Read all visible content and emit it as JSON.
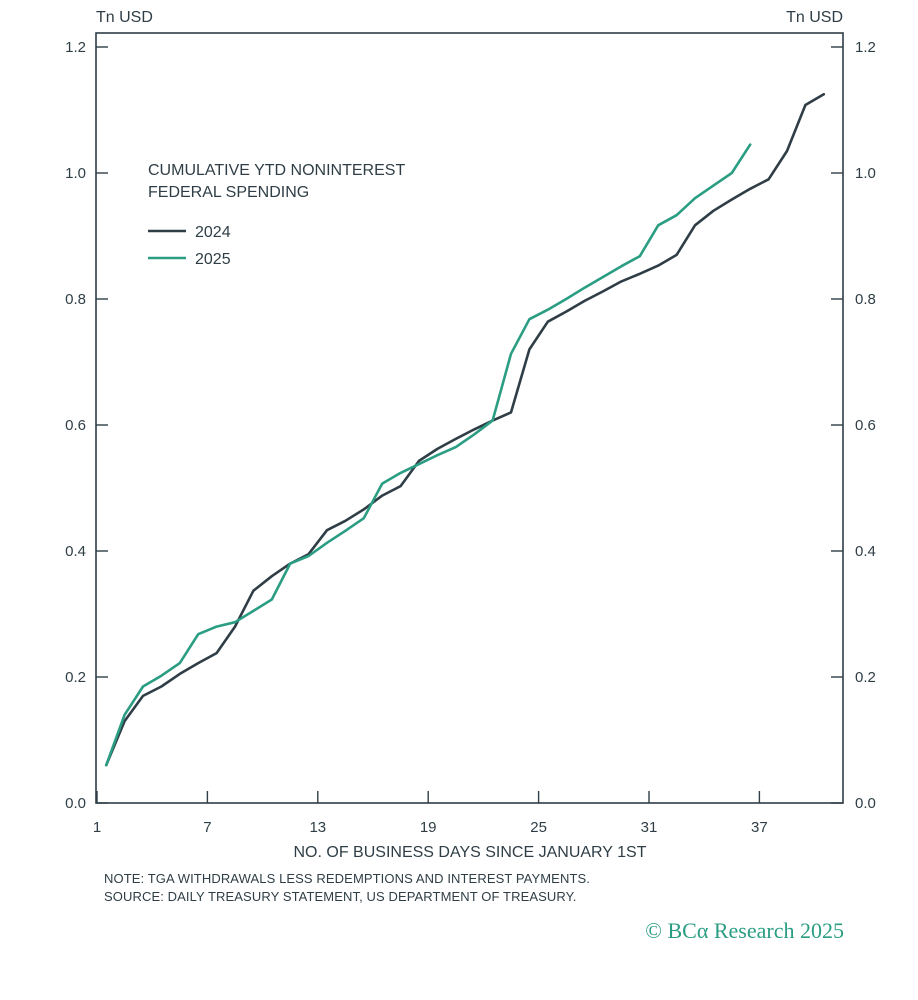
{
  "chart_data": {
    "type": "line",
    "title": "CUMULATIVE YTD NONINTEREST FEDERAL SPENDING",
    "title_lines": [
      "CUMULATIVE YTD NONINTEREST",
      "FEDERAL SPENDING"
    ],
    "y_unit_left": "Tn USD",
    "y_unit_right": "Tn USD",
    "xlabel": "NO. OF BUSINESS DAYS SINCE JANUARY 1ST",
    "ylabel": "Tn USD",
    "xlim": [
      1,
      41
    ],
    "ylim": [
      0,
      1.2
    ],
    "x_ticks": [
      1,
      7,
      13,
      19,
      25,
      31,
      37
    ],
    "y_ticks": [
      0.0,
      0.2,
      0.4,
      0.6,
      0.8,
      1.0,
      1.2
    ],
    "y_tick_labels": [
      "0.0",
      "0.2",
      "0.4",
      "0.6",
      "0.8",
      "1.0",
      "1.2"
    ],
    "legend_position": "upper-left",
    "grid": false,
    "series": [
      {
        "name": "2024",
        "color": "#2f3e46",
        "points": [
          [
            1.5,
            0.06
          ],
          [
            2.5,
            0.13
          ],
          [
            3.5,
            0.17
          ],
          [
            4.5,
            0.185
          ],
          [
            5.5,
            0.205
          ],
          [
            6.5,
            0.222
          ],
          [
            7.5,
            0.238
          ],
          [
            8.5,
            0.28
          ],
          [
            9.5,
            0.337
          ],
          [
            10.5,
            0.36
          ],
          [
            11.5,
            0.38
          ],
          [
            12.5,
            0.395
          ],
          [
            13.5,
            0.433
          ],
          [
            14.5,
            0.448
          ],
          [
            15.5,
            0.466
          ],
          [
            16.5,
            0.488
          ],
          [
            17.5,
            0.503
          ],
          [
            18.5,
            0.543
          ],
          [
            19.5,
            0.562
          ],
          [
            20.5,
            0.578
          ],
          [
            21.5,
            0.593
          ],
          [
            22.5,
            0.607
          ],
          [
            23.5,
            0.62
          ],
          [
            24.5,
            0.72
          ],
          [
            25.5,
            0.764
          ],
          [
            26.5,
            0.78
          ],
          [
            27.5,
            0.797
          ],
          [
            28.5,
            0.812
          ],
          [
            29.5,
            0.828
          ],
          [
            30.5,
            0.84
          ],
          [
            31.5,
            0.853
          ],
          [
            32.5,
            0.87
          ],
          [
            33.5,
            0.917
          ],
          [
            34.5,
            0.94
          ],
          [
            35.5,
            0.958
          ],
          [
            36.5,
            0.975
          ],
          [
            37.5,
            0.99
          ],
          [
            38.5,
            1.035
          ],
          [
            39.5,
            1.108
          ],
          [
            40.5,
            1.125
          ]
        ]
      },
      {
        "name": "2025",
        "color": "#2a9d83",
        "points": [
          [
            1.5,
            0.06
          ],
          [
            2.5,
            0.14
          ],
          [
            3.5,
            0.185
          ],
          [
            4.5,
            0.202
          ],
          [
            5.5,
            0.222
          ],
          [
            6.5,
            0.268
          ],
          [
            7.5,
            0.28
          ],
          [
            8.5,
            0.287
          ],
          [
            9.5,
            0.305
          ],
          [
            10.5,
            0.323
          ],
          [
            11.5,
            0.38
          ],
          [
            12.5,
            0.392
          ],
          [
            13.5,
            0.413
          ],
          [
            14.5,
            0.432
          ],
          [
            15.5,
            0.452
          ],
          [
            16.5,
            0.507
          ],
          [
            17.5,
            0.524
          ],
          [
            18.5,
            0.538
          ],
          [
            19.5,
            0.552
          ],
          [
            20.5,
            0.565
          ],
          [
            21.5,
            0.585
          ],
          [
            22.5,
            0.607
          ],
          [
            23.5,
            0.713
          ],
          [
            24.5,
            0.768
          ],
          [
            25.5,
            0.783
          ],
          [
            26.5,
            0.8
          ],
          [
            27.5,
            0.818
          ],
          [
            28.5,
            0.835
          ],
          [
            29.5,
            0.852
          ],
          [
            30.5,
            0.868
          ],
          [
            31.5,
            0.917
          ],
          [
            32.5,
            0.933
          ],
          [
            33.5,
            0.96
          ],
          [
            34.5,
            0.98
          ],
          [
            35.5,
            1.0
          ],
          [
            36.5,
            1.045
          ]
        ]
      }
    ]
  },
  "footer": {
    "note": "NOTE: TGA WITHDRAWALS LESS REDEMPTIONS AND INTEREST PAYMENTS.",
    "source": "SOURCE: DAILY TREASURY STATEMENT, US DEPARTMENT OF TREASURY.",
    "copyright": "© BCα Research 2025"
  },
  "colors": {
    "axis": "#2f3e46",
    "brand": "#2a9d83"
  }
}
